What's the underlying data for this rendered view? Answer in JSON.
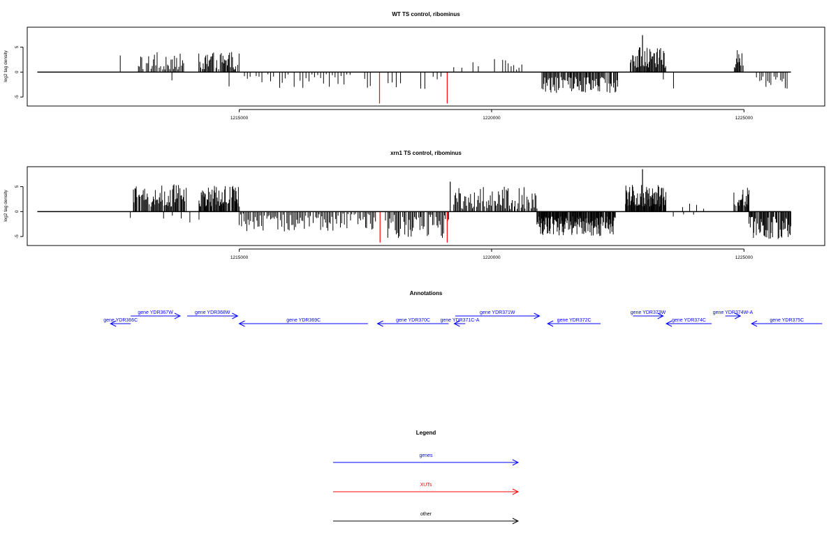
{
  "colors": {
    "gene": "#0000ff",
    "xut": "#ff0000",
    "other": "#000000",
    "frame": "#000000",
    "bar": "#000000"
  },
  "chart_data": [
    {
      "type": "bar",
      "title": "WT TS control, ribominus",
      "ylabel": "log2 tag density",
      "xlim": [
        1210800,
        1226600
      ],
      "ylim": [
        -6.8,
        9.0
      ],
      "xticks": [
        1215000,
        1220000,
        1225000
      ],
      "xtick_labels": [
        "1215000",
        "1220000",
        "1225000"
      ],
      "yticks": [
        -5,
        0,
        5
      ],
      "ytick_labels": [
        "-5",
        "0",
        "5"
      ],
      "baseline": {
        "from": 1211000,
        "to": 1225930
      },
      "segments": [
        {
          "start": 1212630,
          "end": 1212660,
          "count": 1,
          "sign": 1,
          "min": 3.2,
          "max": 3.4,
          "density": 1
        },
        {
          "start": 1213000,
          "end": 1213900,
          "count": 40,
          "sign": 1,
          "min": 0.5,
          "max": 4.0,
          "density": 0.8
        },
        {
          "start": 1213640,
          "end": 1213690,
          "count": 1,
          "sign": -1,
          "min": 1.6,
          "max": 1.7,
          "density": 1
        },
        {
          "start": 1214200,
          "end": 1215000,
          "count": 48,
          "sign": 1,
          "min": 0.5,
          "max": 4.2,
          "density": 0.85
        },
        {
          "start": 1214780,
          "end": 1214820,
          "count": 1,
          "sign": -1,
          "min": 2.8,
          "max": 2.9,
          "density": 1
        },
        {
          "start": 1215100,
          "end": 1217600,
          "count": 44,
          "sign": -1,
          "min": 0.4,
          "max": 3.2,
          "density": 0.75
        },
        {
          "start": 1217950,
          "end": 1219000,
          "count": 14,
          "sign": -1,
          "min": 0.5,
          "max": 4.8,
          "density": 0.7
        },
        {
          "start": 1219250,
          "end": 1220600,
          "count": 26,
          "sign": 1,
          "min": 0.5,
          "max": 3.0,
          "density": 0.65
        },
        {
          "start": 1221000,
          "end": 1222500,
          "count": 85,
          "sign": -1,
          "min": 1.0,
          "max": 4.2,
          "density": 0.92
        },
        {
          "start": 1222750,
          "end": 1223450,
          "count": 48,
          "sign": 1,
          "min": 0.8,
          "max": 5.0,
          "density": 0.85
        },
        {
          "start": 1223400,
          "end": 1223600,
          "count": 4,
          "sign": -1,
          "min": 1.0,
          "max": 3.5,
          "density": 0.8
        },
        {
          "start": 1224800,
          "end": 1225000,
          "count": 16,
          "sign": 1,
          "min": 0.8,
          "max": 4.5,
          "density": 0.85
        },
        {
          "start": 1225250,
          "end": 1225850,
          "count": 20,
          "sign": -1,
          "min": 0.8,
          "max": 3.4,
          "density": 0.75
        }
      ],
      "peaks": [
        {
          "x": 1222990,
          "y": 7.4,
          "color": "bar"
        },
        {
          "x": 1217780,
          "y": -6.3,
          "color": "xut"
        },
        {
          "x": 1219120,
          "y": -6.3,
          "color": "xut"
        }
      ]
    },
    {
      "type": "bar",
      "title": "xrn1 TS control, ribominus",
      "ylabel": "log2 tag density",
      "xlim": [
        1210800,
        1226600
      ],
      "ylim": [
        -6.8,
        9.0
      ],
      "xticks": [
        1215000,
        1220000,
        1225000
      ],
      "xtick_labels": [
        "1215000",
        "1220000",
        "1225000"
      ],
      "yticks": [
        -5,
        0,
        5
      ],
      "ytick_labels": [
        "-5",
        "0",
        "5"
      ],
      "baseline": {
        "from": 1211000,
        "to": 1225930
      },
      "segments": [
        {
          "start": 1212820,
          "end": 1212860,
          "count": 1,
          "sign": -1,
          "min": 1.2,
          "max": 1.3,
          "density": 1
        },
        {
          "start": 1212900,
          "end": 1213950,
          "count": 70,
          "sign": 1,
          "min": 1.0,
          "max": 5.5,
          "density": 0.9
        },
        {
          "start": 1213500,
          "end": 1214200,
          "count": 5,
          "sign": -1,
          "min": 0.8,
          "max": 2.2,
          "density": 0.8
        },
        {
          "start": 1214200,
          "end": 1215000,
          "count": 65,
          "sign": 1,
          "min": 1.0,
          "max": 5.2,
          "density": 0.9
        },
        {
          "start": 1215000,
          "end": 1217700,
          "count": 110,
          "sign": -1,
          "min": 0.4,
          "max": 4.0,
          "density": 0.85
        },
        {
          "start": 1217900,
          "end": 1219150,
          "count": 60,
          "sign": -1,
          "min": 0.5,
          "max": 5.5,
          "density": 0.9
        },
        {
          "start": 1219250,
          "end": 1220900,
          "count": 85,
          "sign": 1,
          "min": 0.5,
          "max": 5.0,
          "density": 0.9
        },
        {
          "start": 1220900,
          "end": 1222450,
          "count": 150,
          "sign": -1,
          "min": 1.0,
          "max": 5.0,
          "density": 0.95
        },
        {
          "start": 1222650,
          "end": 1223450,
          "count": 75,
          "sign": 1,
          "min": 1.0,
          "max": 5.5,
          "density": 0.9
        },
        {
          "start": 1223500,
          "end": 1224200,
          "count": 6,
          "sign": 1,
          "min": 0.5,
          "max": 1.8,
          "density": 0.8
        },
        {
          "start": 1223600,
          "end": 1224000,
          "count": 3,
          "sign": -1,
          "min": 0.5,
          "max": 1.2,
          "density": 0.8
        },
        {
          "start": 1224800,
          "end": 1225100,
          "count": 28,
          "sign": 1,
          "min": 1.0,
          "max": 5.0,
          "density": 0.9
        },
        {
          "start": 1225100,
          "end": 1225930,
          "count": 60,
          "sign": -1,
          "min": 1.0,
          "max": 5.5,
          "density": 0.9
        }
      ],
      "peaks": [
        {
          "x": 1219180,
          "y": 6.0,
          "color": "bar"
        },
        {
          "x": 1222990,
          "y": 8.5,
          "color": "bar"
        },
        {
          "x": 1217790,
          "y": -6.2,
          "color": "xut"
        },
        {
          "x": 1219120,
          "y": -6.2,
          "color": "xut"
        }
      ]
    }
  ],
  "annotations": {
    "title": "Annotations",
    "genes": [
      {
        "label": "gene YDR366C",
        "from": 1212450,
        "to": 1212850,
        "row": 2
      },
      {
        "label": "gene YDR367W",
        "from": 1212850,
        "to": 1213830,
        "row": 1
      },
      {
        "label": "gene YDR368W",
        "from": 1213970,
        "to": 1214970,
        "row": 1
      },
      {
        "label": "gene YDR369C",
        "from": 1215000,
        "to": 1217550,
        "row": 2
      },
      {
        "label": "gene YDR370C",
        "from": 1217740,
        "to": 1219150,
        "row": 2
      },
      {
        "label": "gene YDR371C-A",
        "from": 1219260,
        "to": 1219480,
        "row": 2
      },
      {
        "label": "gene YDR371W",
        "from": 1219280,
        "to": 1220950,
        "row": 1
      },
      {
        "label": "gene YDR372C",
        "from": 1221110,
        "to": 1222160,
        "row": 2
      },
      {
        "label": "gene YDR373W",
        "from": 1222800,
        "to": 1223400,
        "row": 1
      },
      {
        "label": "gene YDR374C",
        "from": 1223460,
        "to": 1224360,
        "row": 2
      },
      {
        "label": "gene YDR374W-A",
        "from": 1224630,
        "to": 1224930,
        "row": 1
      },
      {
        "label": "gene YDR375C",
        "from": 1225150,
        "to": 1226550,
        "row": 2
      }
    ]
  },
  "legend": {
    "title": "Legend",
    "items": [
      {
        "label": "genes",
        "color": "gene"
      },
      {
        "label": "XUTs",
        "color": "xut"
      },
      {
        "label": "other",
        "color": "other"
      }
    ]
  }
}
